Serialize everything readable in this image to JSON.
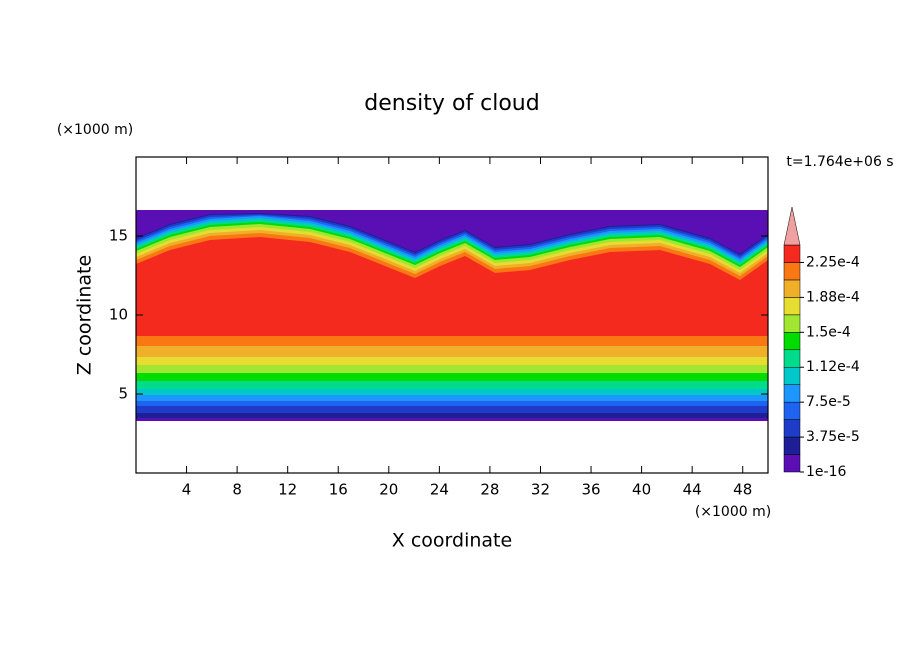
{
  "chart_data": {
    "type": "contour",
    "title": "density of cloud",
    "x_label": "X coordinate",
    "y_label": "Z coordinate",
    "x_unit": "(×1000 m)",
    "y_unit": "(×1000 m)",
    "time_label": "t=1.764e+06 s",
    "xlim": [
      0,
      50
    ],
    "ylim": [
      0,
      20
    ],
    "xticks": [
      4,
      8,
      12,
      16,
      20,
      24,
      28,
      32,
      36,
      40,
      44,
      48
    ],
    "yticks": [
      5,
      10,
      15
    ],
    "colorbar": {
      "levels": [
        1e-16,
        1.875e-05,
        3.75e-05,
        5.625e-05,
        7.5e-05,
        9.375e-05,
        0.0001125,
        0.00013125,
        0.00015,
        0.00016875,
        0.0001875,
        0.00020625,
        0.000225
      ],
      "colors": [
        "#5a0fb4",
        "#1e1e96",
        "#1e3cc8",
        "#1e64f0",
        "#1e96ff",
        "#00c8c8",
        "#00dc8c",
        "#00dc00",
        "#a0e632",
        "#e6dc32",
        "#f0af28",
        "#fa7814",
        "#f52a1e"
      ],
      "extend_color": "#f0a0a0",
      "ticks": [
        {
          "value": 1e-16,
          "label": "1e-16"
        },
        {
          "value": 3.75e-05,
          "label": "3.75e-5"
        },
        {
          "value": 7.5e-05,
          "label": "7.5e-5"
        },
        {
          "value": 0.0001125,
          "label": "1.12e-4"
        },
        {
          "value": 0.00015,
          "label": "1.5e-4"
        },
        {
          "value": 0.0001875,
          "label": "1.88e-4"
        },
        {
          "value": 0.000225,
          "label": "2.25e-4"
        }
      ]
    }
  }
}
